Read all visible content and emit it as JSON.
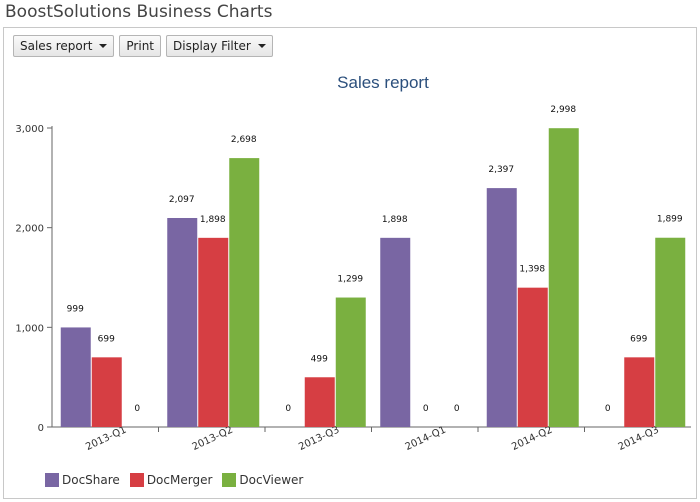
{
  "app_title": "BoostSolutions Business Charts",
  "toolbar": {
    "report_menu_label": "Sales report",
    "print_label": "Print",
    "filter_label": "Display Filter"
  },
  "chart_data": {
    "type": "bar",
    "title": "Sales report",
    "xlabel": "",
    "ylabel": "",
    "ylim": [
      0,
      3000
    ],
    "yticks": [
      "0",
      "1,000",
      "2,000",
      "3,000"
    ],
    "categories": [
      "2013-Q1",
      "2013-Q2",
      "2013-Q3",
      "2014-Q1",
      "2014-Q2",
      "2014-Q3"
    ],
    "series": [
      {
        "name": "DocShare",
        "color": "#7966a3",
        "values": [
          999,
          2097,
          0,
          1898,
          2397,
          0
        ],
        "labels": [
          "999",
          "2,097",
          "0",
          "1,898",
          "2,397",
          "0"
        ]
      },
      {
        "name": "DocMerger",
        "color": "#d63e43",
        "values": [
          699,
          1898,
          499,
          0,
          1398,
          699
        ],
        "labels": [
          "699",
          "1,898",
          "499",
          "0",
          "1,398",
          "699"
        ]
      },
      {
        "name": "DocViewer",
        "color": "#7ab040",
        "values": [
          0,
          2698,
          1299,
          0,
          2998,
          1899
        ],
        "labels": [
          "0",
          "2,698",
          "1,299",
          "0",
          "2,998",
          "1,899"
        ]
      }
    ],
    "legend_position": "bottom-left",
    "grid": false
  }
}
